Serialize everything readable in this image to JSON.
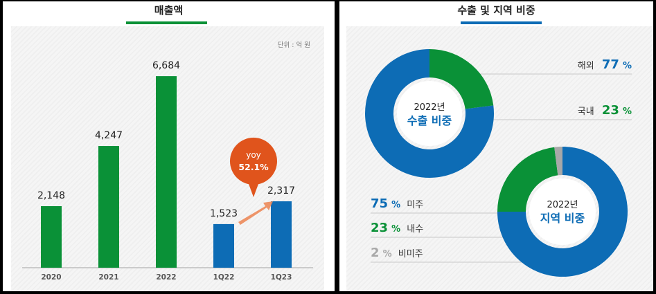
{
  "left": {
    "title": "매출액",
    "unit": "단위 : 억 원",
    "callout": {
      "line1": "yoy",
      "line2": "52.1%"
    }
  },
  "right": {
    "title": "수출 및 지역 비중",
    "donut1": {
      "line1": "2022년",
      "line2": "수출 비중"
    },
    "donut2": {
      "line1": "2022년",
      "line2": "지역 비중"
    },
    "labels": {
      "overseas": {
        "name": "해외",
        "pct": "77",
        "sym": "%"
      },
      "domestic": {
        "name": "국내",
        "pct": "23",
        "sym": "%"
      },
      "americas": {
        "pct": "75",
        "sym": "%",
        "name": "미주"
      },
      "internal": {
        "pct": "23",
        "sym": "%",
        "name": "내수"
      },
      "non_americas": {
        "pct": "2",
        "sym": "%",
        "name": "비미주"
      }
    }
  },
  "colors": {
    "green": "#0a9137",
    "blue": "#0d6cb5",
    "gray": "#a8a8a8",
    "orange": "#e0541c"
  },
  "chart_data": [
    {
      "type": "bar",
      "title": "매출액",
      "unit": "단위 : 억 원",
      "categories": [
        "2020",
        "2021",
        "2022",
        "1Q22",
        "1Q23"
      ],
      "values": [
        2148,
        4247,
        6684,
        1523,
        2317
      ],
      "value_labels": [
        "2,148",
        "4,247",
        "6,684",
        "1,523",
        "2,317"
      ],
      "bar_colors": [
        "#0a9137",
        "#0a9137",
        "#0a9137",
        "#0d6cb5",
        "#0d6cb5"
      ],
      "ylim": [
        0,
        7000
      ]
    },
    {
      "type": "pie",
      "title": "2022년 수출 비중",
      "labels": [
        "해외",
        "국내"
      ],
      "values": [
        77,
        23
      ],
      "colors": [
        "#0d6cb5",
        "#0a9137"
      ]
    },
    {
      "type": "pie",
      "title": "2022년 지역 비중",
      "labels": [
        "미주",
        "내수",
        "비미주"
      ],
      "values": [
        75,
        23,
        2
      ],
      "colors": [
        "#0d6cb5",
        "#0a9137",
        "#a8a8a8"
      ]
    }
  ]
}
